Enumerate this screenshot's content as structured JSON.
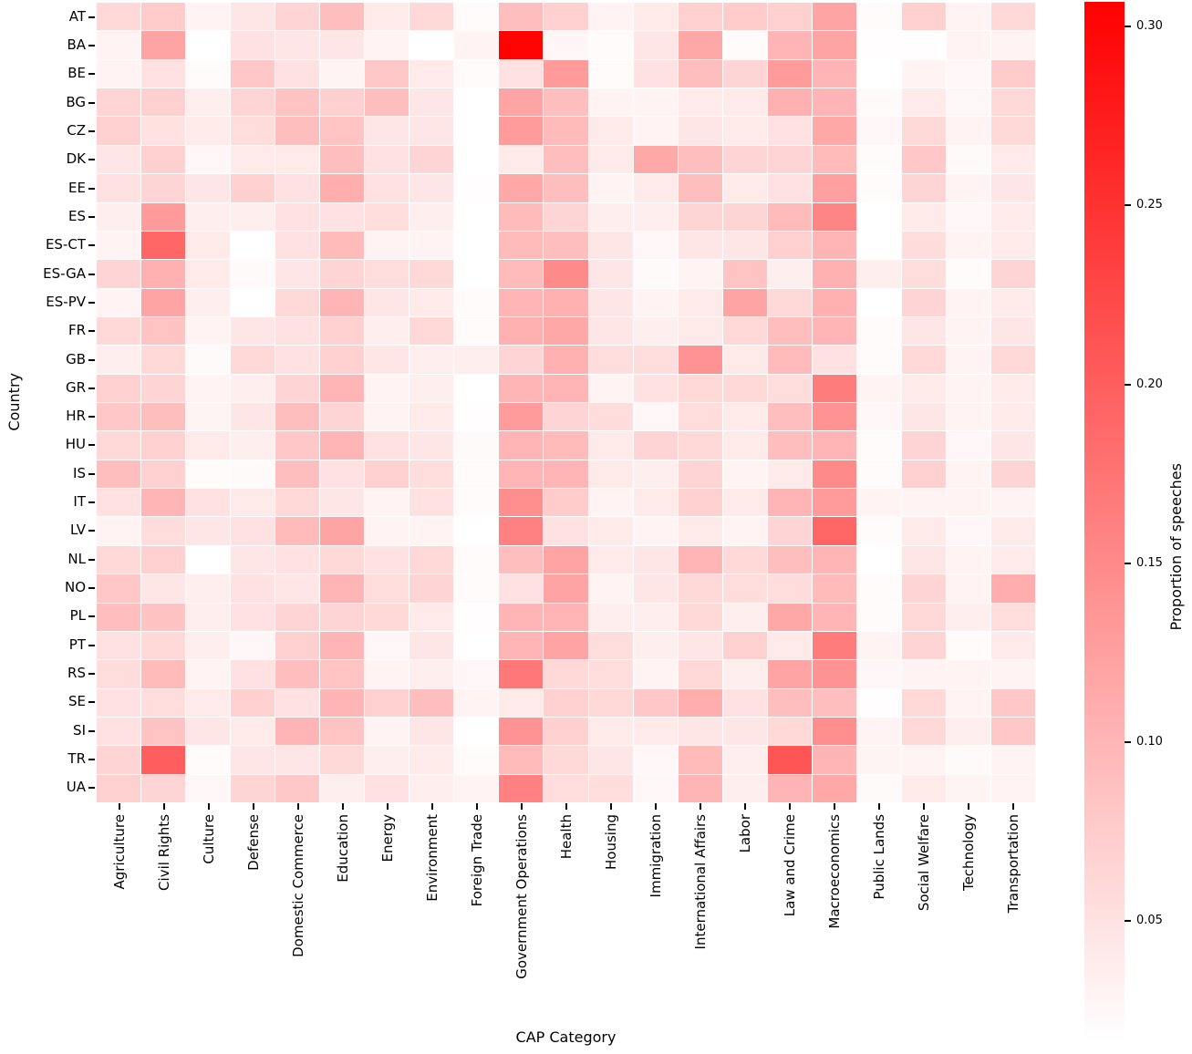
{
  "chart_data": {
    "type": "heatmap",
    "xlabel": "CAP Category",
    "ylabel": "Country",
    "colorbar_label": "Proportion of speeches",
    "colorbar_tick_labels": [
      "0.30",
      "0.25",
      "0.20",
      "0.15",
      "0.10",
      "0.05"
    ],
    "colorbar_tick_values": [
      0.3,
      0.25,
      0.2,
      0.15,
      0.1,
      0.05
    ],
    "vmin": 0.016,
    "vmax": 0.307,
    "colormap": {
      "low": "#ffffff",
      "high": "#ff0000"
    },
    "grid": "white 1px cell separators",
    "legend_position": "right colorbar",
    "categories": [
      "Agriculture",
      "Civil Rights",
      "Culture",
      "Defense",
      "Domestic Commerce",
      "Education",
      "Energy",
      "Environment",
      "Foreign Trade",
      "Government Operations",
      "Health",
      "Housing",
      "Immigration",
      "International Affairs",
      "Labor",
      "Law and Crime",
      "Macroeconomics",
      "Public Lands",
      "Social Welfare",
      "Technology",
      "Transportation"
    ],
    "countries": [
      "AT",
      "BA",
      "BE",
      "BG",
      "CZ",
      "DK",
      "EE",
      "ES",
      "ES-CT",
      "ES-GA",
      "ES-PV",
      "FR",
      "GB",
      "GR",
      "HR",
      "HU",
      "IS",
      "IT",
      "LV",
      "NL",
      "NO",
      "PL",
      "PT",
      "RS",
      "SE",
      "SI",
      "TR",
      "UA"
    ],
    "values": [
      [
        0.06,
        0.075,
        0.03,
        0.045,
        0.065,
        0.09,
        0.04,
        0.06,
        0.02,
        0.09,
        0.07,
        0.03,
        0.04,
        0.07,
        0.075,
        0.07,
        0.12,
        0.02,
        0.07,
        0.03,
        0.06
      ],
      [
        0.03,
        0.12,
        0.016,
        0.05,
        0.045,
        0.045,
        0.03,
        0.016,
        0.03,
        0.305,
        0.025,
        0.02,
        0.045,
        0.115,
        0.02,
        0.1,
        0.12,
        0.018,
        0.018,
        0.03,
        0.03
      ],
      [
        0.03,
        0.05,
        0.02,
        0.08,
        0.05,
        0.028,
        0.08,
        0.04,
        0.02,
        0.05,
        0.13,
        0.02,
        0.05,
        0.09,
        0.065,
        0.13,
        0.1,
        0.014,
        0.03,
        0.025,
        0.075
      ],
      [
        0.065,
        0.07,
        0.035,
        0.065,
        0.085,
        0.07,
        0.09,
        0.045,
        0.015,
        0.12,
        0.09,
        0.03,
        0.03,
        0.04,
        0.04,
        0.105,
        0.1,
        0.022,
        0.04,
        0.025,
        0.06
      ],
      [
        0.07,
        0.05,
        0.04,
        0.055,
        0.09,
        0.085,
        0.045,
        0.045,
        0.014,
        0.13,
        0.095,
        0.04,
        0.03,
        0.045,
        0.04,
        0.05,
        0.115,
        0.025,
        0.06,
        0.03,
        0.06
      ],
      [
        0.045,
        0.07,
        0.025,
        0.04,
        0.04,
        0.09,
        0.05,
        0.065,
        0.014,
        0.04,
        0.09,
        0.04,
        0.115,
        0.09,
        0.065,
        0.065,
        0.095,
        0.02,
        0.08,
        0.022,
        0.04
      ],
      [
        0.05,
        0.065,
        0.045,
        0.07,
        0.05,
        0.11,
        0.05,
        0.045,
        0.018,
        0.115,
        0.09,
        0.03,
        0.04,
        0.09,
        0.04,
        0.05,
        0.125,
        0.02,
        0.065,
        0.03,
        0.045
      ],
      [
        0.035,
        0.13,
        0.035,
        0.035,
        0.05,
        0.05,
        0.055,
        0.035,
        0.014,
        0.095,
        0.065,
        0.035,
        0.035,
        0.065,
        0.065,
        0.095,
        0.155,
        0.015,
        0.04,
        0.025,
        0.04
      ],
      [
        0.03,
        0.19,
        0.04,
        0.016,
        0.05,
        0.095,
        0.03,
        0.03,
        0.014,
        0.095,
        0.09,
        0.045,
        0.025,
        0.045,
        0.045,
        0.07,
        0.1,
        0.016,
        0.055,
        0.03,
        0.04
      ],
      [
        0.065,
        0.105,
        0.04,
        0.022,
        0.045,
        0.065,
        0.055,
        0.06,
        0.014,
        0.095,
        0.15,
        0.045,
        0.022,
        0.03,
        0.085,
        0.035,
        0.105,
        0.035,
        0.055,
        0.02,
        0.065
      ],
      [
        0.03,
        0.12,
        0.035,
        0.014,
        0.06,
        0.1,
        0.045,
        0.04,
        0.02,
        0.1,
        0.105,
        0.045,
        0.03,
        0.04,
        0.12,
        0.06,
        0.105,
        0.015,
        0.065,
        0.03,
        0.04
      ],
      [
        0.06,
        0.085,
        0.03,
        0.045,
        0.05,
        0.07,
        0.035,
        0.06,
        0.02,
        0.105,
        0.115,
        0.045,
        0.035,
        0.04,
        0.06,
        0.09,
        0.1,
        0.02,
        0.045,
        0.03,
        0.045
      ],
      [
        0.035,
        0.06,
        0.022,
        0.06,
        0.05,
        0.07,
        0.045,
        0.035,
        0.035,
        0.065,
        0.105,
        0.055,
        0.055,
        0.14,
        0.04,
        0.095,
        0.05,
        0.02,
        0.06,
        0.03,
        0.06
      ],
      [
        0.07,
        0.065,
        0.03,
        0.035,
        0.065,
        0.1,
        0.03,
        0.035,
        0.014,
        0.1,
        0.1,
        0.03,
        0.05,
        0.06,
        0.06,
        0.055,
        0.165,
        0.03,
        0.04,
        0.03,
        0.04
      ],
      [
        0.08,
        0.09,
        0.028,
        0.045,
        0.09,
        0.065,
        0.03,
        0.04,
        0.018,
        0.13,
        0.065,
        0.055,
        0.025,
        0.055,
        0.04,
        0.09,
        0.14,
        0.025,
        0.045,
        0.03,
        0.04
      ],
      [
        0.06,
        0.07,
        0.04,
        0.035,
        0.08,
        0.1,
        0.05,
        0.045,
        0.022,
        0.1,
        0.095,
        0.04,
        0.065,
        0.06,
        0.04,
        0.09,
        0.1,
        0.02,
        0.065,
        0.025,
        0.045
      ],
      [
        0.09,
        0.07,
        0.02,
        0.022,
        0.09,
        0.05,
        0.07,
        0.055,
        0.02,
        0.1,
        0.1,
        0.04,
        0.035,
        0.065,
        0.03,
        0.04,
        0.15,
        0.02,
        0.07,
        0.03,
        0.065
      ],
      [
        0.05,
        0.1,
        0.05,
        0.04,
        0.06,
        0.045,
        0.03,
        0.05,
        0.02,
        0.145,
        0.075,
        0.03,
        0.04,
        0.07,
        0.04,
        0.1,
        0.13,
        0.03,
        0.03,
        0.03,
        0.03
      ],
      [
        0.03,
        0.055,
        0.045,
        0.05,
        0.095,
        0.12,
        0.03,
        0.03,
        0.014,
        0.16,
        0.05,
        0.04,
        0.03,
        0.04,
        0.03,
        0.065,
        0.19,
        0.02,
        0.04,
        0.025,
        0.04
      ],
      [
        0.06,
        0.07,
        0.015,
        0.045,
        0.05,
        0.06,
        0.05,
        0.06,
        0.02,
        0.09,
        0.12,
        0.04,
        0.045,
        0.1,
        0.06,
        0.09,
        0.1,
        0.014,
        0.045,
        0.03,
        0.04
      ],
      [
        0.08,
        0.045,
        0.035,
        0.05,
        0.045,
        0.1,
        0.055,
        0.065,
        0.02,
        0.05,
        0.12,
        0.03,
        0.045,
        0.06,
        0.055,
        0.055,
        0.095,
        0.02,
        0.065,
        0.03,
        0.11
      ],
      [
        0.09,
        0.085,
        0.035,
        0.05,
        0.065,
        0.065,
        0.06,
        0.04,
        0.018,
        0.1,
        0.1,
        0.035,
        0.035,
        0.06,
        0.035,
        0.115,
        0.1,
        0.02,
        0.06,
        0.035,
        0.055
      ],
      [
        0.05,
        0.06,
        0.035,
        0.025,
        0.07,
        0.1,
        0.025,
        0.045,
        0.015,
        0.1,
        0.12,
        0.055,
        0.035,
        0.045,
        0.07,
        0.04,
        0.165,
        0.03,
        0.065,
        0.02,
        0.04
      ],
      [
        0.055,
        0.095,
        0.03,
        0.05,
        0.09,
        0.085,
        0.03,
        0.035,
        0.025,
        0.17,
        0.06,
        0.055,
        0.03,
        0.06,
        0.035,
        0.12,
        0.14,
        0.025,
        0.03,
        0.03,
        0.03
      ],
      [
        0.05,
        0.055,
        0.04,
        0.07,
        0.05,
        0.1,
        0.07,
        0.09,
        0.03,
        0.04,
        0.07,
        0.06,
        0.08,
        0.11,
        0.05,
        0.09,
        0.09,
        0.018,
        0.06,
        0.03,
        0.08
      ],
      [
        0.05,
        0.085,
        0.045,
        0.04,
        0.1,
        0.085,
        0.03,
        0.045,
        0.015,
        0.14,
        0.07,
        0.04,
        0.04,
        0.045,
        0.045,
        0.06,
        0.145,
        0.03,
        0.06,
        0.035,
        0.08
      ],
      [
        0.065,
        0.2,
        0.02,
        0.045,
        0.045,
        0.06,
        0.035,
        0.04,
        0.02,
        0.095,
        0.06,
        0.045,
        0.025,
        0.095,
        0.035,
        0.21,
        0.1,
        0.028,
        0.028,
        0.022,
        0.03
      ],
      [
        0.07,
        0.065,
        0.025,
        0.065,
        0.08,
        0.035,
        0.05,
        0.035,
        0.03,
        0.16,
        0.055,
        0.055,
        0.025,
        0.1,
        0.035,
        0.1,
        0.115,
        0.022,
        0.04,
        0.028,
        0.03
      ]
    ]
  }
}
